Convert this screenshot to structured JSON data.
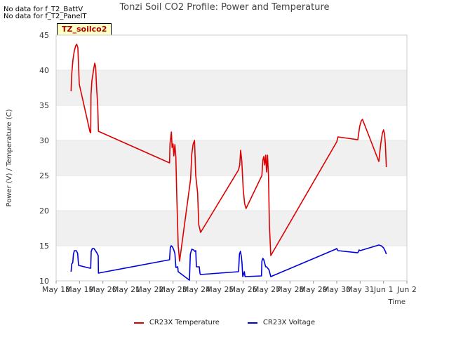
{
  "notices": [
    "No data for f_T2_BattV",
    "No data for f_T2_PanelT"
  ],
  "site_label": "TZ_soilco2",
  "chart_data": {
    "type": "line",
    "title": "Tonzi Soil CO2 Profile: Power and Temperature",
    "xlabel": "Time",
    "ylabel": "Power (V) / Temperature (C)",
    "ylim": [
      10,
      45
    ],
    "xlim": [
      0,
      15
    ],
    "yticks": [
      10,
      15,
      20,
      25,
      30,
      35,
      40,
      45
    ],
    "xticks": [
      {
        "x": 0,
        "label": "May 18"
      },
      {
        "x": 1,
        "label": "May 19"
      },
      {
        "x": 2,
        "label": "May 20"
      },
      {
        "x": 3,
        "label": "May 21"
      },
      {
        "x": 4,
        "label": "May 22"
      },
      {
        "x": 5,
        "label": "May 23"
      },
      {
        "x": 6,
        "label": "May 24"
      },
      {
        "x": 7,
        "label": "May 25"
      },
      {
        "x": 8,
        "label": "May 26"
      },
      {
        "x": 9,
        "label": "May 27"
      },
      {
        "x": 10,
        "label": "May 28"
      },
      {
        "x": 11,
        "label": "May 29"
      },
      {
        "x": 12,
        "label": "May 30"
      },
      {
        "x": 13,
        "label": "May 31"
      },
      {
        "x": 14,
        "label": "Jun 1"
      },
      {
        "x": 15,
        "label": "Jun 2"
      }
    ],
    "series": [
      {
        "name": "CR23X Temperature",
        "color": "#dd0000",
        "points": [
          [
            0.64,
            37.0
          ],
          [
            0.67,
            39.5
          ],
          [
            0.72,
            41.5
          ],
          [
            0.78,
            42.8
          ],
          [
            0.84,
            43.5
          ],
          [
            0.88,
            43.7
          ],
          [
            0.93,
            43.2
          ],
          [
            0.99,
            38.0
          ],
          [
            1.45,
            31.2
          ],
          [
            1.48,
            31.1
          ],
          [
            1.49,
            36.5
          ],
          [
            1.53,
            38.5
          ],
          [
            1.6,
            40.0
          ],
          [
            1.65,
            41.0
          ],
          [
            1.69,
            40.5
          ],
          [
            1.73,
            37.5
          ],
          [
            1.78,
            35.0
          ],
          [
            1.81,
            31.3
          ],
          [
            4.85,
            26.8
          ],
          [
            4.87,
            29.5
          ],
          [
            4.93,
            31.2
          ],
          [
            4.96,
            29.0
          ],
          [
            5.0,
            29.5
          ],
          [
            5.03,
            27.8
          ],
          [
            5.08,
            29.4
          ],
          [
            5.12,
            27.5
          ],
          [
            5.16,
            22.0
          ],
          [
            5.22,
            15.0
          ],
          [
            5.28,
            12.8
          ],
          [
            5.75,
            24.5
          ],
          [
            5.8,
            28.0
          ],
          [
            5.86,
            29.5
          ],
          [
            5.92,
            30.0
          ],
          [
            5.97,
            25.0
          ],
          [
            6.05,
            22.5
          ],
          [
            6.1,
            18.0
          ],
          [
            6.18,
            16.9
          ],
          [
            7.8,
            25.8
          ],
          [
            7.85,
            26.5
          ],
          [
            7.89,
            28.6
          ],
          [
            7.94,
            27.0
          ],
          [
            8.0,
            23.0
          ],
          [
            8.06,
            21.0
          ],
          [
            8.12,
            20.3
          ],
          [
            8.8,
            25.0
          ],
          [
            8.84,
            27.2
          ],
          [
            8.88,
            27.7
          ],
          [
            8.92,
            26.5
          ],
          [
            8.96,
            27.9
          ],
          [
            9.0,
            25.5
          ],
          [
            9.04,
            27.9
          ],
          [
            9.08,
            25.0
          ],
          [
            9.12,
            18.0
          ],
          [
            9.18,
            13.6
          ],
          [
            12.0,
            29.8
          ],
          [
            12.05,
            30.5
          ],
          [
            12.9,
            30.1
          ],
          [
            12.98,
            32.0
          ],
          [
            13.05,
            32.8
          ],
          [
            13.1,
            33.0
          ],
          [
            13.8,
            27.0
          ],
          [
            13.88,
            29.5
          ],
          [
            13.95,
            31.0
          ],
          [
            14.0,
            31.5
          ],
          [
            14.04,
            31.0
          ],
          [
            14.08,
            29.5
          ],
          [
            14.12,
            26.2
          ]
        ]
      },
      {
        "name": "CR23X Voltage",
        "color": "#0000dd",
        "points": [
          [
            0.64,
            11.3
          ],
          [
            0.67,
            12.4
          ],
          [
            0.71,
            12.6
          ],
          [
            0.74,
            13.8
          ],
          [
            0.78,
            14.3
          ],
          [
            0.86,
            14.3
          ],
          [
            0.92,
            13.9
          ],
          [
            0.96,
            12.2
          ],
          [
            1.45,
            11.8
          ],
          [
            1.48,
            11.8
          ],
          [
            1.5,
            14.2
          ],
          [
            1.55,
            14.6
          ],
          [
            1.62,
            14.6
          ],
          [
            1.68,
            14.3
          ],
          [
            1.74,
            14.0
          ],
          [
            1.8,
            13.6
          ],
          [
            1.81,
            11.1
          ],
          [
            4.85,
            13.0
          ],
          [
            4.88,
            14.7
          ],
          [
            4.92,
            15.0
          ],
          [
            4.98,
            14.8
          ],
          [
            5.03,
            14.4
          ],
          [
            5.08,
            13.9
          ],
          [
            5.12,
            11.9
          ],
          [
            5.2,
            12.0
          ],
          [
            5.22,
            11.3
          ],
          [
            5.7,
            10.1
          ],
          [
            5.74,
            13.8
          ],
          [
            5.8,
            14.5
          ],
          [
            5.88,
            14.4
          ],
          [
            5.93,
            14.2
          ],
          [
            5.97,
            14.3
          ],
          [
            6.0,
            12.0
          ],
          [
            6.12,
            12.0
          ],
          [
            6.15,
            11.1
          ],
          [
            6.17,
            10.9
          ],
          [
            7.8,
            11.3
          ],
          [
            7.84,
            13.8
          ],
          [
            7.88,
            14.2
          ],
          [
            7.92,
            13.5
          ],
          [
            7.95,
            12.5
          ],
          [
            7.98,
            10.6
          ],
          [
            8.05,
            11.3
          ],
          [
            8.08,
            10.6
          ],
          [
            8.78,
            10.7
          ],
          [
            8.8,
            12.8
          ],
          [
            8.84,
            13.2
          ],
          [
            8.88,
            13.0
          ],
          [
            8.92,
            12.5
          ],
          [
            8.96,
            12.0
          ],
          [
            9.0,
            12.0
          ],
          [
            9.1,
            11.6
          ],
          [
            9.18,
            10.6
          ],
          [
            11.95,
            14.5
          ],
          [
            12.0,
            14.6
          ],
          [
            12.05,
            14.3
          ],
          [
            12.9,
            14.0
          ],
          [
            12.96,
            14.4
          ],
          [
            13.0,
            14.3
          ],
          [
            13.1,
            14.4
          ],
          [
            13.8,
            15.1
          ],
          [
            13.9,
            15.0
          ],
          [
            14.0,
            14.7
          ],
          [
            14.08,
            14.2
          ],
          [
            14.12,
            13.8
          ]
        ]
      }
    ],
    "legend": "bottom-center"
  }
}
